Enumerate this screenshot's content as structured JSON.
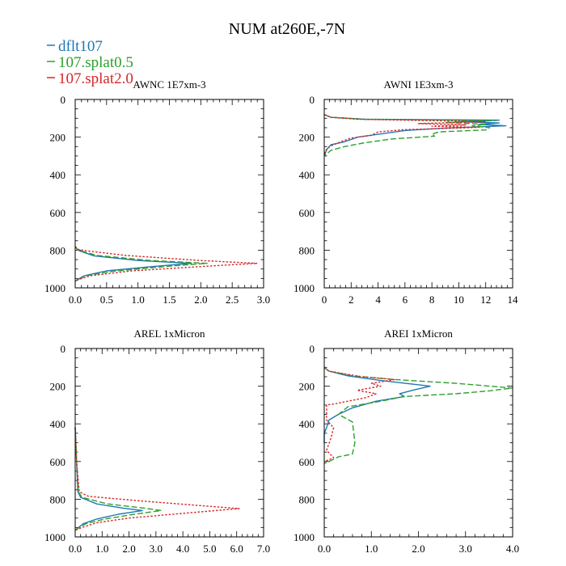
{
  "figure": {
    "title": "NUM at260E,-7N",
    "legend": [
      {
        "name": "dflt107",
        "color": "#1f77b4",
        "dash": "solid"
      },
      {
        "name": "107.splat0.5",
        "color": "#2ca02c",
        "dash": "dashed"
      },
      {
        "name": "107.splat2.0",
        "color": "#d62728",
        "dash": "dotted"
      }
    ]
  },
  "chart_data": [
    {
      "type": "line",
      "title": "AWNC  1E7xm-3",
      "xlim": [
        0,
        3.0
      ],
      "ylim": [
        1000,
        0
      ],
      "y_inverted": true,
      "xticks": [
        0,
        0.5,
        1.0,
        1.5,
        2.0,
        2.5,
        3.0
      ],
      "xtick_labels": [
        "0.0",
        "0.5",
        "1.0",
        "1.5",
        "2.0",
        "2.5",
        "3.0"
      ],
      "yticks": [
        0,
        200,
        400,
        600,
        800,
        1000
      ],
      "ytick_labels": [
        "0",
        "200",
        "400",
        "600",
        "800",
        "1000"
      ],
      "series": [
        {
          "name": "dflt107",
          "points": [
            [
              0.0,
              780
            ],
            [
              0.03,
              795
            ],
            [
              0.08,
              805
            ],
            [
              0.3,
              830
            ],
            [
              1.0,
              855
            ],
            [
              1.85,
              870
            ],
            [
              1.3,
              885
            ],
            [
              0.5,
              910
            ],
            [
              0.15,
              935
            ],
            [
              0.04,
              955
            ],
            [
              0.0,
              965
            ]
          ]
        },
        {
          "name": "107.splat0.5",
          "points": [
            [
              0.0,
              780
            ],
            [
              0.03,
              795
            ],
            [
              0.1,
              805
            ],
            [
              0.35,
              828
            ],
            [
              1.2,
              855
            ],
            [
              2.1,
              870
            ],
            [
              1.5,
              885
            ],
            [
              0.6,
              912
            ],
            [
              0.18,
              935
            ],
            [
              0.05,
              955
            ],
            [
              0.0,
              965
            ]
          ]
        },
        {
          "name": "107.splat2.0",
          "points": [
            [
              0.0,
              780
            ],
            [
              0.04,
              795
            ],
            [
              0.15,
              802
            ],
            [
              0.8,
              828
            ],
            [
              2.0,
              855
            ],
            [
              2.9,
              870
            ],
            [
              2.1,
              885
            ],
            [
              0.9,
              910
            ],
            [
              0.25,
              935
            ],
            [
              0.06,
              955
            ],
            [
              0.0,
              965
            ]
          ]
        }
      ]
    },
    {
      "type": "line",
      "title": "AWNI  1E3xm-3",
      "xlim": [
        0,
        14
      ],
      "ylim": [
        1000,
        0
      ],
      "y_inverted": true,
      "xticks": [
        0,
        2,
        4,
        6,
        8,
        10,
        12,
        14
      ],
      "xtick_labels": [
        "0",
        "2",
        "4",
        "6",
        "8",
        "10",
        "12",
        "14"
      ],
      "yticks": [
        0,
        200,
        400,
        600,
        800,
        1000
      ],
      "yticks_labels_note": "",
      "ytick_labels": [
        "0",
        "200",
        "400",
        "600",
        "800",
        "1000"
      ],
      "series": [
        {
          "name": "dflt107",
          "points": [
            [
              0.0,
              80
            ],
            [
              0.5,
              95
            ],
            [
              3.0,
              105
            ],
            [
              13.0,
              110
            ],
            [
              10.0,
              118
            ],
            [
              13.0,
              125
            ],
            [
              11.5,
              132
            ],
            [
              13.5,
              140
            ],
            [
              9.0,
              152
            ],
            [
              6.0,
              165
            ],
            [
              4.0,
              185
            ],
            [
              2.5,
              200
            ],
            [
              1.5,
              225
            ],
            [
              0.5,
              240
            ],
            [
              0.2,
              265
            ],
            [
              0.0,
              300
            ]
          ]
        },
        {
          "name": "107.splat0.5",
          "points": [
            [
              0.0,
              80
            ],
            [
              0.5,
              95
            ],
            [
              3.0,
              105
            ],
            [
              12.8,
              112
            ],
            [
              9.0,
              122
            ],
            [
              12.0,
              132
            ],
            [
              11.0,
              140
            ],
            [
              12.3,
              150
            ],
            [
              12.0,
              162
            ],
            [
              8.5,
              172
            ],
            [
              8.0,
              185
            ],
            [
              8.2,
              195
            ],
            [
              5.0,
              210
            ],
            [
              3.0,
              230
            ],
            [
              1.5,
              250
            ],
            [
              0.5,
              270
            ],
            [
              0.0,
              300
            ]
          ]
        },
        {
          "name": "107.splat2.0",
          "points": [
            [
              0.0,
              80
            ],
            [
              0.5,
              95
            ],
            [
              2.5,
              105
            ],
            [
              12.0,
              118
            ],
            [
              7.0,
              128
            ],
            [
              10.5,
              135
            ],
            [
              8.0,
              142
            ],
            [
              11.5,
              148
            ],
            [
              8.5,
              155
            ],
            [
              6.0,
              160
            ],
            [
              4.0,
              172
            ],
            [
              3.5,
              190
            ],
            [
              2.0,
              205
            ],
            [
              1.2,
              225
            ],
            [
              0.4,
              250
            ],
            [
              0.1,
              270
            ],
            [
              0.0,
              290
            ]
          ]
        }
      ]
    },
    {
      "type": "line",
      "title": "AREL  1xMicron",
      "xlim": [
        0,
        7.0
      ],
      "ylim": [
        1000,
        0
      ],
      "y_inverted": true,
      "xticks": [
        0,
        1,
        2,
        3,
        4,
        5,
        6,
        7
      ],
      "xtick_labels": [
        "0.0",
        "1.0",
        "2.0",
        "3.0",
        "4.0",
        "5.0",
        "6.0",
        "7.0"
      ],
      "yticks": [
        0,
        200,
        400,
        600,
        800,
        1000
      ],
      "ytick_labels": [
        "0",
        "200",
        "400",
        "600",
        "800",
        "1000"
      ],
      "series": [
        {
          "name": "dflt107",
          "points": [
            [
              0.0,
              420
            ],
            [
              0.05,
              600
            ],
            [
              0.1,
              760
            ],
            [
              0.2,
              790
            ],
            [
              0.8,
              825
            ],
            [
              1.8,
              848
            ],
            [
              2.5,
              860
            ],
            [
              1.6,
              880
            ],
            [
              0.8,
              905
            ],
            [
              0.3,
              930
            ],
            [
              0.08,
              955
            ],
            [
              0.0,
              965
            ]
          ]
        },
        {
          "name": "107.splat0.5",
          "points": [
            [
              0.0,
              420
            ],
            [
              0.05,
              600
            ],
            [
              0.12,
              760
            ],
            [
              0.25,
              790
            ],
            [
              1.2,
              825
            ],
            [
              2.6,
              848
            ],
            [
              3.2,
              860
            ],
            [
              2.2,
              880
            ],
            [
              1.1,
              905
            ],
            [
              0.4,
              930
            ],
            [
              0.1,
              955
            ],
            [
              0.0,
              965
            ]
          ]
        },
        {
          "name": "107.splat2.0",
          "points": [
            [
              0.0,
              420
            ],
            [
              0.05,
              600
            ],
            [
              0.15,
              760
            ],
            [
              0.5,
              785
            ],
            [
              2.5,
              810
            ],
            [
              4.5,
              832
            ],
            [
              6.1,
              850
            ],
            [
              4.0,
              875
            ],
            [
              2.0,
              900
            ],
            [
              0.8,
              925
            ],
            [
              0.25,
              950
            ],
            [
              0.0,
              965
            ]
          ]
        }
      ]
    },
    {
      "type": "line",
      "title": "AREI  1xMicron",
      "xlim": [
        0,
        4.0
      ],
      "ylim": [
        1000,
        0
      ],
      "y_inverted": true,
      "xticks": [
        0,
        1,
        2,
        3,
        4
      ],
      "xtick_labels": [
        "0.0",
        "1.0",
        "2.0",
        "3.0",
        "4.0"
      ],
      "yticks": [
        0,
        200,
        400,
        600,
        800,
        1000
      ],
      "ytick_labels": [
        "0",
        "200",
        "400",
        "600",
        "800",
        "1000"
      ],
      "series": [
        {
          "name": "dflt107",
          "points": [
            [
              0.0,
              100
            ],
            [
              0.1,
              120
            ],
            [
              0.5,
              145
            ],
            [
              1.2,
              170
            ],
            [
              2.25,
              200
            ],
            [
              1.9,
              220
            ],
            [
              1.6,
              240
            ],
            [
              1.7,
              255
            ],
            [
              1.1,
              280
            ],
            [
              0.6,
              315
            ],
            [
              0.3,
              350
            ],
            [
              0.1,
              380
            ],
            [
              0.05,
              420
            ],
            [
              0.0,
              450
            ],
            [
              0.0,
              500
            ]
          ]
        },
        {
          "name": "107.splat0.5",
          "points": [
            [
              0.0,
              100
            ],
            [
              0.1,
              120
            ],
            [
              0.6,
              145
            ],
            [
              1.5,
              165
            ],
            [
              2.8,
              185
            ],
            [
              4.0,
              210
            ],
            [
              3.5,
              225
            ],
            [
              2.8,
              240
            ],
            [
              1.7,
              255
            ],
            [
              1.2,
              280
            ],
            [
              0.5,
              310
            ],
            [
              0.3,
              350
            ],
            [
              0.6,
              390
            ],
            [
              0.65,
              500
            ],
            [
              0.6,
              560
            ],
            [
              0.3,
              575
            ],
            [
              0.1,
              600
            ],
            [
              0.0,
              610
            ]
          ]
        },
        {
          "name": "107.splat2.0",
          "points": [
            [
              0.0,
              100
            ],
            [
              0.1,
              120
            ],
            [
              0.8,
              150
            ],
            [
              1.5,
              165
            ],
            [
              1.0,
              185
            ],
            [
              1.2,
              200
            ],
            [
              0.7,
              222
            ],
            [
              1.1,
              240
            ],
            [
              0.9,
              260
            ],
            [
              0.2,
              295
            ],
            [
              0.05,
              300
            ],
            [
              0.05,
              380
            ],
            [
              0.2,
              420
            ],
            [
              0.15,
              470
            ],
            [
              0.05,
              540
            ],
            [
              0.2,
              580
            ],
            [
              0.0,
              600
            ]
          ]
        }
      ]
    }
  ]
}
